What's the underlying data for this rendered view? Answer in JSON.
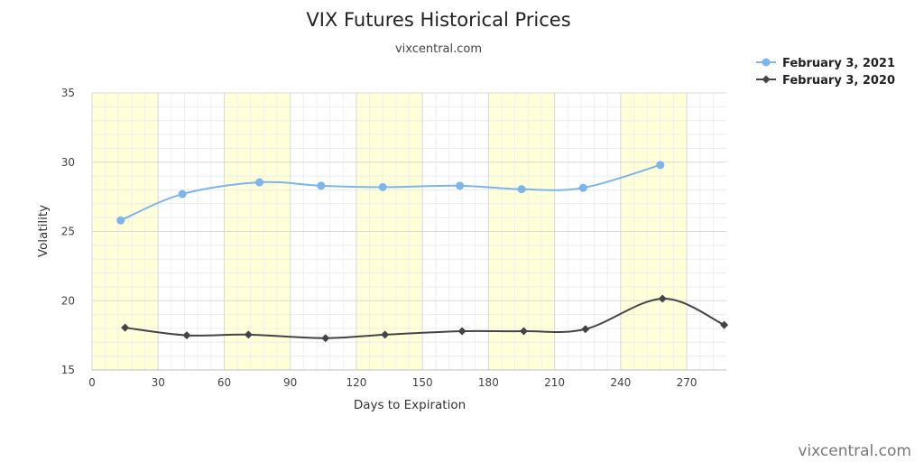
{
  "chart_data": {
    "type": "line",
    "title": "VIX Futures Historical Prices",
    "subtitle": "vixcentral.com",
    "xlabel": "Days to Expiration",
    "ylabel": "Volatility",
    "xlim": [
      0,
      288
    ],
    "ylim": [
      15,
      35
    ],
    "x_ticks": [
      0,
      30,
      60,
      90,
      120,
      150,
      180,
      210,
      240,
      270
    ],
    "y_ticks": [
      15,
      20,
      25,
      30,
      35
    ],
    "grid": true,
    "shaded_x_bands": [
      [
        0,
        30
      ],
      [
        60,
        90
      ],
      [
        120,
        150
      ],
      [
        180,
        210
      ],
      [
        240,
        270
      ]
    ],
    "legend_position": "top-right",
    "credit": "vixcentral.com",
    "series": [
      {
        "name": "February 3, 2021",
        "color": "#7cb5ec",
        "marker": "circle",
        "x": [
          13,
          41,
          76,
          104,
          132,
          167,
          195,
          223,
          258
        ],
        "y": [
          25.8,
          27.7,
          28.55,
          28.3,
          28.2,
          28.3,
          28.05,
          28.15,
          29.8
        ]
      },
      {
        "name": "February 3, 2020",
        "color": "#434348",
        "marker": "diamond",
        "x": [
          15,
          43,
          71,
          106,
          133,
          168,
          196,
          224,
          259,
          287
        ],
        "y": [
          18.05,
          17.5,
          17.55,
          17.3,
          17.55,
          17.8,
          17.8,
          17.95,
          20.15,
          18.25
        ]
      }
    ]
  }
}
